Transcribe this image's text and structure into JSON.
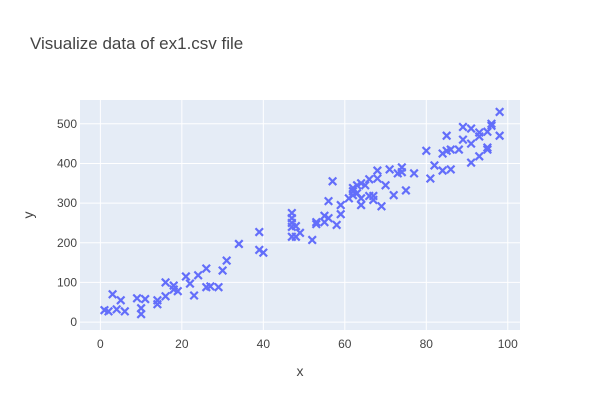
{
  "chart_data": {
    "type": "scatter",
    "title": "Visualize data of ex1.csv file",
    "xlabel": "x",
    "ylabel": "y",
    "xlim": [
      -5,
      103
    ],
    "ylim": [
      -20,
      560
    ],
    "x_ticks": [
      0,
      20,
      40,
      60,
      80,
      100
    ],
    "y_ticks": [
      0,
      100,
      200,
      300,
      400,
      500
    ],
    "grid": true,
    "marker": "x",
    "colors": {
      "marker": "#636efa",
      "plot_bg": "#e5ecf6",
      "grid": "#ffffff"
    },
    "series": [
      {
        "points": [
          [
            1,
            30
          ],
          [
            2,
            27
          ],
          [
            3,
            70
          ],
          [
            4,
            32
          ],
          [
            5,
            55
          ],
          [
            6,
            27
          ],
          [
            9,
            60
          ],
          [
            10,
            35
          ],
          [
            10,
            20
          ],
          [
            11,
            58
          ],
          [
            14,
            45
          ],
          [
            14,
            55
          ],
          [
            16,
            65
          ],
          [
            16,
            100
          ],
          [
            18,
            92
          ],
          [
            18,
            82
          ],
          [
            19,
            78
          ],
          [
            21,
            115
          ],
          [
            22,
            97
          ],
          [
            23,
            67
          ],
          [
            24,
            118
          ],
          [
            26,
            135
          ],
          [
            26,
            88
          ],
          [
            27,
            90
          ],
          [
            29,
            88
          ],
          [
            30,
            130
          ],
          [
            31,
            155
          ],
          [
            34,
            197
          ],
          [
            39,
            227
          ],
          [
            39,
            182
          ],
          [
            40,
            175
          ],
          [
            47,
            275
          ],
          [
            47,
            262
          ],
          [
            47,
            250
          ],
          [
            47,
            240
          ],
          [
            47,
            215
          ],
          [
            48,
            215
          ],
          [
            48,
            242
          ],
          [
            49,
            225
          ],
          [
            52,
            207
          ],
          [
            53,
            252
          ],
          [
            53,
            247
          ],
          [
            55,
            268
          ],
          [
            55,
            252
          ],
          [
            56,
            305
          ],
          [
            56,
            262
          ],
          [
            57,
            355
          ],
          [
            58,
            245
          ],
          [
            59,
            295
          ],
          [
            59,
            272
          ],
          [
            61,
            312
          ],
          [
            62,
            330
          ],
          [
            62,
            320
          ],
          [
            62,
            338
          ],
          [
            63,
            345
          ],
          [
            63,
            325
          ],
          [
            64,
            350
          ],
          [
            64,
            312
          ],
          [
            64,
            295
          ],
          [
            65,
            345
          ],
          [
            66,
            318
          ],
          [
            66,
            360
          ],
          [
            67,
            318
          ],
          [
            67,
            308
          ],
          [
            68,
            362
          ],
          [
            68,
            382
          ],
          [
            69,
            292
          ],
          [
            70,
            345
          ],
          [
            71,
            385
          ],
          [
            72,
            320
          ],
          [
            73,
            375
          ],
          [
            74,
            390
          ],
          [
            74,
            378
          ],
          [
            75,
            332
          ],
          [
            77,
            375
          ],
          [
            80,
            432
          ],
          [
            81,
            362
          ],
          [
            82,
            395
          ],
          [
            84,
            382
          ],
          [
            84,
            425
          ],
          [
            85,
            470
          ],
          [
            85,
            432
          ],
          [
            86,
            435
          ],
          [
            86,
            385
          ],
          [
            88,
            435
          ],
          [
            89,
            460
          ],
          [
            89,
            492
          ],
          [
            91,
            488
          ],
          [
            91,
            450
          ],
          [
            91,
            402
          ],
          [
            93,
            478
          ],
          [
            93,
            468
          ],
          [
            93,
            418
          ],
          [
            95,
            480
          ],
          [
            95,
            435
          ],
          [
            95,
            440
          ],
          [
            96,
            500
          ],
          [
            96,
            495
          ],
          [
            98,
            530
          ],
          [
            98,
            470
          ]
        ]
      }
    ]
  }
}
